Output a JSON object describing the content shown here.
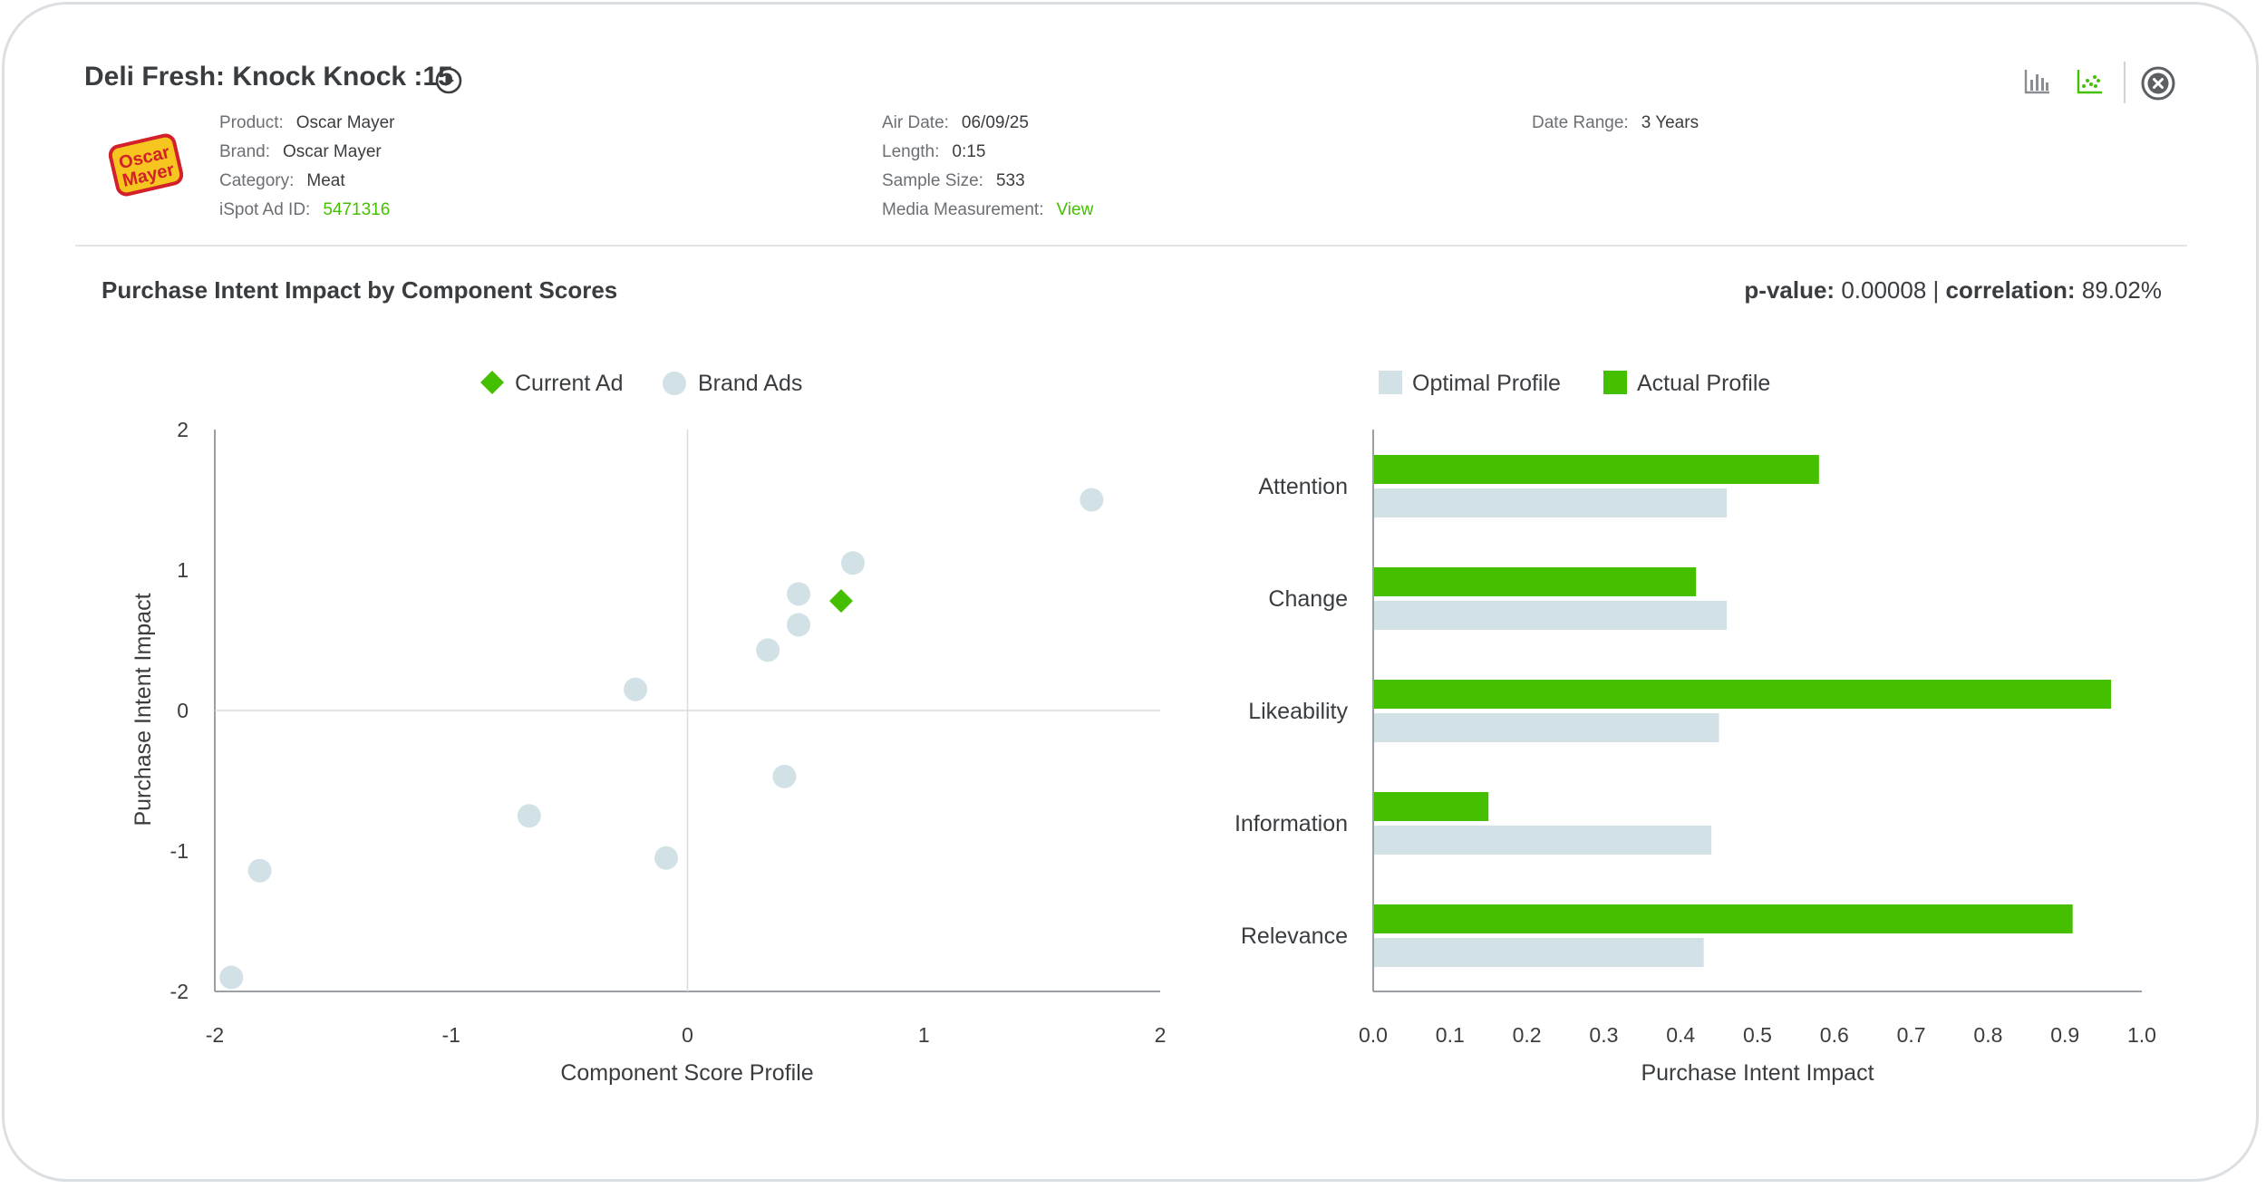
{
  "ad": {
    "title": "Deli Fresh: Knock Knock :15",
    "logo_text": [
      "Oscar",
      "Mayer"
    ],
    "product_label": "Product:",
    "product": "Oscar Mayer",
    "brand_label": "Brand:",
    "brand": "Oscar Mayer",
    "category_label": "Category:",
    "category": "Meat",
    "ad_id_label": "iSpot Ad ID:",
    "ad_id": "5471316",
    "air_date_label": "Air Date:",
    "air_date": "06/09/25",
    "length_label": "Length:",
    "length": "0:15",
    "sample_label": "Sample Size:",
    "sample": "533",
    "media_label": "Media Measurement:",
    "media_link": "View",
    "range_label": "Date Range:",
    "range": "3 Years"
  },
  "toolbar": {
    "icons": [
      "bar-chart-icon",
      "scatter-chart-icon",
      "close-icon"
    ]
  },
  "section": {
    "title": "Purchase Intent Impact by Component Scores",
    "pvalue_label": "p-value:",
    "pvalue": "0.00008",
    "sep": "|",
    "corr_label": "correlation:",
    "corr": "89.02%"
  },
  "colors": {
    "green": "#45c000",
    "light": "#d2e1e6",
    "text": "#3a3d40"
  },
  "chart_data": [
    {
      "type": "scatter",
      "xlabel": "Component Score Profile",
      "ylabel": "Purchase Intent Impact",
      "xlim": [
        -2,
        2
      ],
      "ylim": [
        -2,
        2
      ],
      "xticks": [
        "-2",
        "-1",
        "0",
        "1",
        "2"
      ],
      "yticks": [
        "2",
        "1",
        "0",
        "-1",
        "-2"
      ],
      "legend": [
        "Current Ad",
        "Brand Ads"
      ],
      "current_ad": [
        {
          "x": 0.65,
          "y": 0.78
        }
      ],
      "brand_ads": [
        {
          "x": 1.71,
          "y": 1.5
        },
        {
          "x": 0.7,
          "y": 1.05
        },
        {
          "x": 0.47,
          "y": 0.83
        },
        {
          "x": 0.47,
          "y": 0.61
        },
        {
          "x": 0.34,
          "y": 0.43
        },
        {
          "x": -0.22,
          "y": 0.15
        },
        {
          "x": 0.41,
          "y": -0.47
        },
        {
          "x": -0.67,
          "y": -0.75
        },
        {
          "x": -0.09,
          "y": -1.05
        },
        {
          "x": -1.81,
          "y": -1.14
        },
        {
          "x": -1.93,
          "y": -1.9
        }
      ]
    },
    {
      "type": "bar",
      "orientation": "horizontal",
      "xlabel": "Purchase Intent Impact",
      "xlim": [
        0,
        1
      ],
      "xticks": [
        "0.0",
        "0.1",
        "0.2",
        "0.3",
        "0.4",
        "0.5",
        "0.6",
        "0.7",
        "0.8",
        "0.9",
        "1.0"
      ],
      "categories": [
        "Attention",
        "Change",
        "Likeability",
        "Information",
        "Relevance"
      ],
      "legend": [
        "Optimal Profile",
        "Actual Profile"
      ],
      "series": [
        {
          "name": "Actual Profile",
          "values": [
            0.58,
            0.42,
            0.96,
            0.15,
            0.91
          ]
        },
        {
          "name": "Optimal Profile",
          "values": [
            0.46,
            0.46,
            0.45,
            0.44,
            0.43
          ]
        }
      ]
    }
  ]
}
